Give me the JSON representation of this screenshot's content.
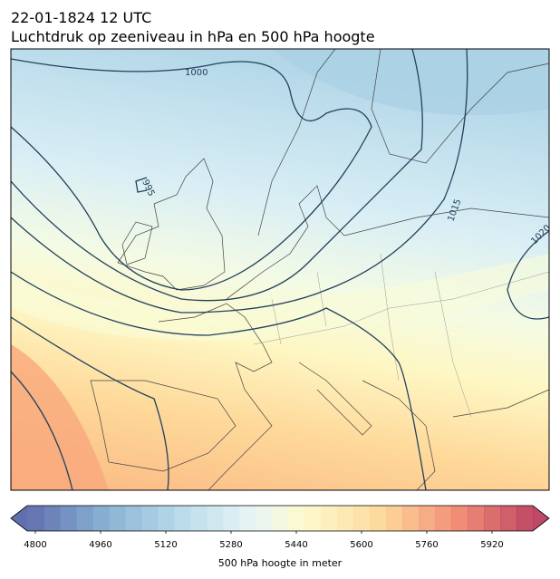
{
  "header": {
    "title": [
      "22-01-1824 12 UTC",
      "Luchtdruk op zeeniveau in hPa en 500 hPa hoogte"
    ]
  },
  "map": {
    "contour_labels": [
      "1000",
      "995",
      "1015",
      "1020"
    ]
  },
  "colorbar": {
    "range": [
      4780,
      6020
    ],
    "ticks": [
      4800,
      4960,
      5120,
      5280,
      5440,
      5600,
      5760,
      5920
    ],
    "label": "500 hPa hoogte in meter"
  }
}
